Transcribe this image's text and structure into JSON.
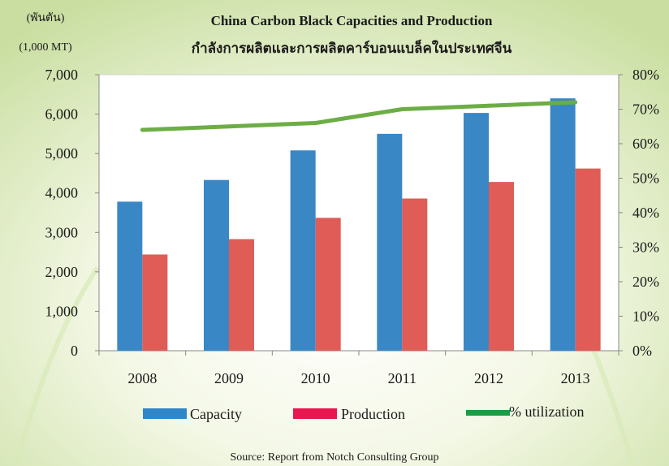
{
  "chart_data": {
    "type": "bar",
    "title": "China Carbon Black Capacities and Production",
    "subtitle": "กำลังการผลิตและการผลิตคาร์บอนแบล็คในประเทศจีน",
    "y_unit_thai": "(พันตัน)",
    "y_unit": "(1,000 MT)",
    "categories": [
      "2008",
      "2009",
      "2010",
      "2011",
      "2012",
      "2013"
    ],
    "series": [
      {
        "name": "Capacity",
        "type": "bar",
        "axis": "left",
        "color": "#3a87c6",
        "values": [
          3780,
          4330,
          5080,
          5500,
          6030,
          6400
        ]
      },
      {
        "name": "Production",
        "type": "bar",
        "axis": "left",
        "color": "#e05c56",
        "values": [
          2440,
          2830,
          3370,
          3860,
          4280,
          4620
        ]
      },
      {
        "name": "% utilization",
        "type": "line",
        "axis": "right",
        "color": "#6dad46",
        "values": [
          64,
          65,
          66,
          70,
          71,
          72
        ]
      }
    ],
    "ylim": [
      0,
      7000
    ],
    "y_ticks": [
      "0",
      "1,000",
      "2,000",
      "3,000",
      "4,000",
      "5,000",
      "6,000",
      "7,000"
    ],
    "y2lim": [
      0,
      80
    ],
    "y2_ticks": [
      "0%",
      "10%",
      "20%",
      "30%",
      "40%",
      "50%",
      "60%",
      "70%",
      "80%"
    ],
    "grid": false,
    "legend_position": "bottom",
    "legend_colors": {
      "capacity": "#2f86c9",
      "production": "#e8174f",
      "utilization": "#1f9a45"
    },
    "source": "Source: Report from Notch Consulting Group"
  }
}
